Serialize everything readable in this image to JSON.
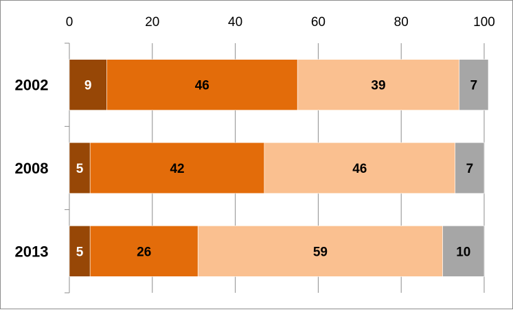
{
  "chart_data": {
    "type": "bar",
    "orientation": "horizontal",
    "stacked": true,
    "categories": [
      "2002",
      "2008",
      "2013"
    ],
    "series": [
      {
        "values": [
          9,
          5,
          5
        ],
        "color": "#974706",
        "label_color": "#ffffff"
      },
      {
        "values": [
          46,
          42,
          26
        ],
        "color": "#e36c0a",
        "label_color": "#000000"
      },
      {
        "values": [
          39,
          46,
          59
        ],
        "color": "#fac090",
        "label_color": "#000000"
      },
      {
        "values": [
          7,
          7,
          10
        ],
        "color": "#a6a6a6",
        "label_color": "#000000"
      }
    ],
    "x_ticks": [
      "0",
      "20",
      "40",
      "60",
      "80",
      "100"
    ],
    "xlim": [
      0,
      100
    ],
    "x_axis_position": "top",
    "grid": true,
    "legend": "none",
    "title": "",
    "xlabel": "",
    "ylabel": ""
  }
}
